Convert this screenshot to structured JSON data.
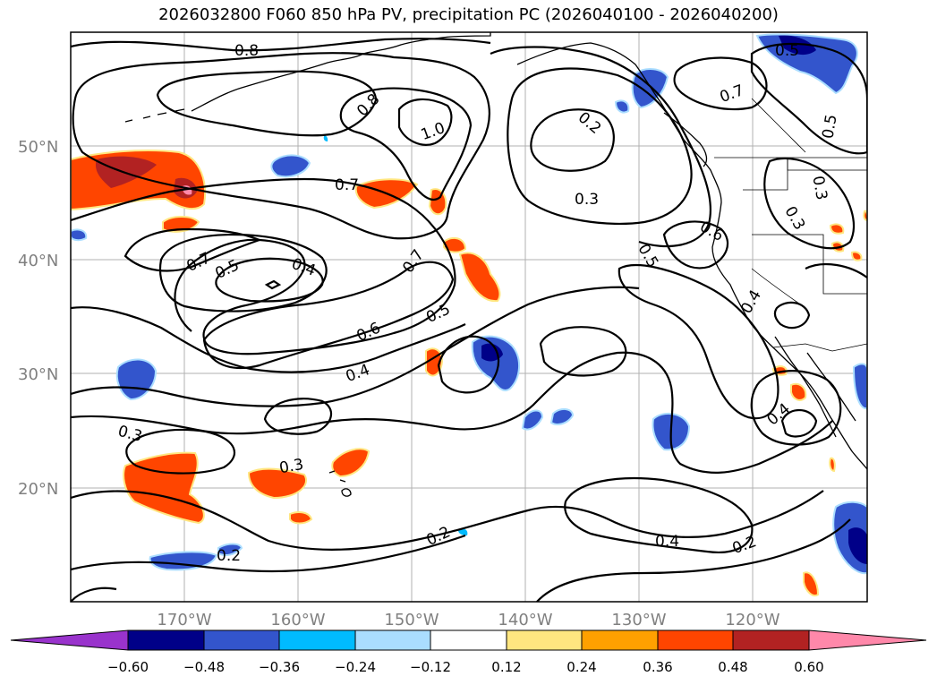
{
  "title": "2026032800 F060 850 hPa PV, precipitation PC (2026040100 - 2026040200)",
  "map": {
    "lat_ticks": [
      "50°N",
      "40°N",
      "30°N",
      "20°N"
    ],
    "lon_ticks": [
      "170°W",
      "160°W",
      "150°W",
      "140°W",
      "130°W",
      "120°W"
    ]
  },
  "contour_labels": [
    "0.8",
    "0.8",
    "1.0",
    "0.7",
    "0.7",
    "0.5",
    "0.4",
    "0.7",
    "0.5",
    "0.6",
    "0.4",
    "0.3",
    "0.3",
    "0.2",
    "0.2",
    "0.4",
    "0.2",
    "0.3",
    "0.6",
    "0.5",
    "0.4",
    "0.4",
    "0.5",
    "0.7",
    "0.5",
    "0.2",
    "0.3",
    "0.3"
  ],
  "colorbar": {
    "ticks": [
      "−0.60",
      "−0.48",
      "−0.36",
      "−0.24",
      "−0.12",
      "0.12",
      "0.24",
      "0.36",
      "0.48",
      "0.60"
    ],
    "colors": [
      "#9933cc",
      "#000088",
      "#3355cc",
      "#00bbff",
      "#aaddff",
      "#ffffff",
      "#ffe680",
      "#ffa000",
      "#ff4500",
      "#b22222",
      "#ff88aa"
    ]
  }
}
